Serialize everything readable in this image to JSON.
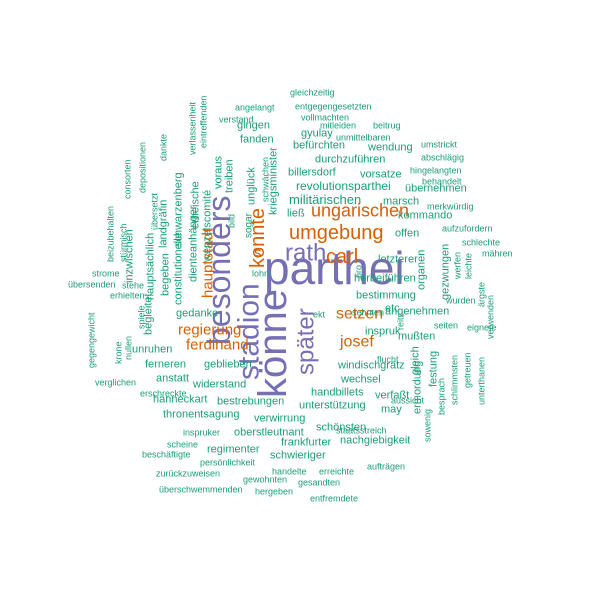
{
  "colors": {
    "large": "#7570b3",
    "medium": "#d95f02",
    "small": "#1b9e77",
    "background": "#ffffff"
  },
  "words": [
    {
      "text": "parthei",
      "color": "large"
    },
    {
      "text": "könne",
      "color": "large"
    },
    {
      "text": "besonders",
      "color": "large"
    },
    {
      "text": "stadion",
      "color": "large"
    },
    {
      "text": "rath",
      "color": "large"
    },
    {
      "text": "später",
      "color": "large"
    },
    {
      "text": "konnte",
      "color": "medium"
    },
    {
      "text": "umgebung",
      "color": "medium"
    },
    {
      "text": "ungarischen",
      "color": "medium"
    },
    {
      "text": "carl",
      "color": "medium"
    },
    {
      "text": "setzen",
      "color": "medium"
    },
    {
      "text": "josef",
      "color": "medium"
    },
    {
      "text": "regierung",
      "color": "medium"
    },
    {
      "text": "ferdinand",
      "color": "medium"
    },
    {
      "text": "hauptstadt",
      "color": "medium"
    },
    {
      "text": "s",
      "color": "medium"
    },
    {
      "text": "militärischen",
      "color": "small"
    },
    {
      "text": "revolutionsparthei",
      "color": "small"
    },
    {
      "text": "billersdorf",
      "color": "small"
    },
    {
      "text": "vorsatze",
      "color": "small"
    },
    {
      "text": "durchzuführen",
      "color": "small"
    },
    {
      "text": "gyulay",
      "color": "small"
    },
    {
      "text": "befürchten",
      "color": "small"
    },
    {
      "text": "wendung",
      "color": "small"
    },
    {
      "text": "marsch",
      "color": "small"
    },
    {
      "text": "kommando",
      "color": "small"
    },
    {
      "text": "offen",
      "color": "small"
    },
    {
      "text": "letzterer",
      "color": "small"
    },
    {
      "text": "herbeiführen",
      "color": "small"
    },
    {
      "text": "bestimmung",
      "color": "small"
    },
    {
      "text": "inspruk",
      "color": "small"
    },
    {
      "text": "etc",
      "color": "small"
    },
    {
      "text": "windischgrätz",
      "color": "small"
    },
    {
      "text": "wechsel",
      "color": "small"
    },
    {
      "text": "handbillets",
      "color": "small"
    },
    {
      "text": "verfaßt",
      "color": "small"
    },
    {
      "text": "unterstützung",
      "color": "small"
    },
    {
      "text": "may",
      "color": "small"
    },
    {
      "text": "schönsten",
      "color": "small"
    },
    {
      "text": "nachgiebigkeit",
      "color": "small"
    },
    {
      "text": "frankfurter",
      "color": "small"
    },
    {
      "text": "schwieriger",
      "color": "small"
    },
    {
      "text": "regimenter",
      "color": "small"
    },
    {
      "text": "oberstleutnant",
      "color": "small"
    },
    {
      "text": "verwirrung",
      "color": "small"
    },
    {
      "text": "thronentsagung",
      "color": "small"
    },
    {
      "text": "bestrebungen",
      "color": "small"
    },
    {
      "text": "hanneckart",
      "color": "small"
    },
    {
      "text": "widerstand",
      "color": "small"
    },
    {
      "text": "anstatt",
      "color": "small"
    },
    {
      "text": "ferneren",
      "color": "small"
    },
    {
      "text": "geblieben",
      "color": "small"
    },
    {
      "text": "unruhen",
      "color": "small"
    },
    {
      "text": "gedanke",
      "color": "small"
    },
    {
      "text": "angenehmen",
      "color": "small"
    },
    {
      "text": "mußten",
      "color": "small"
    },
    {
      "text": "übernehmen",
      "color": "small"
    },
    {
      "text": "fanden",
      "color": "small"
    },
    {
      "text": "gingen",
      "color": "small"
    },
    {
      "text": "ließ",
      "color": "small"
    },
    {
      "text": "sogar",
      "color": "small"
    },
    {
      "text": "ermordung",
      "color": "small"
    },
    {
      "text": "festung",
      "color": "small"
    },
    {
      "text": "gleich",
      "color": "small"
    },
    {
      "text": "organen",
      "color": "small"
    },
    {
      "text": "gezwungen",
      "color": "small"
    },
    {
      "text": "begleitet",
      "color": "small"
    },
    {
      "text": "begeben",
      "color": "small"
    },
    {
      "text": "hauptsächlich",
      "color": "small"
    },
    {
      "text": "inzwischen",
      "color": "small"
    },
    {
      "text": "constitutionelle",
      "color": "small"
    },
    {
      "text": "landgräfin",
      "color": "small"
    },
    {
      "text": "schwarzenberg",
      "color": "small"
    },
    {
      "text": "erheische",
      "color": "small"
    },
    {
      "text": "dienteanhänger",
      "color": "small"
    },
    {
      "text": "wenzelscomité",
      "color": "small"
    },
    {
      "text": "voraus",
      "color": "small"
    },
    {
      "text": "treiben",
      "color": "small"
    },
    {
      "text": "unglück",
      "color": "small"
    },
    {
      "text": "kriegsminister",
      "color": "small"
    },
    {
      "text": "gleichzeitig",
      "color": "small"
    },
    {
      "text": "entgegengesetzten",
      "color": "small"
    },
    {
      "text": "vollmachten",
      "color": "small"
    },
    {
      "text": "angelangt",
      "color": "small"
    },
    {
      "text": "verstand",
      "color": "small"
    },
    {
      "text": "mitleiden",
      "color": "small"
    },
    {
      "text": "beitrug",
      "color": "small"
    },
    {
      "text": "unmittelbaren",
      "color": "small"
    },
    {
      "text": "umstrickt",
      "color": "small"
    },
    {
      "text": "abschlägig",
      "color": "small"
    },
    {
      "text": "hingelangten",
      "color": "small"
    },
    {
      "text": "behandelt",
      "color": "small"
    },
    {
      "text": "merkwürdig",
      "color": "small"
    },
    {
      "text": "aufzufordern",
      "color": "small"
    },
    {
      "text": "schlechte",
      "color": "small"
    },
    {
      "text": "mähren",
      "color": "small"
    },
    {
      "text": "werfen",
      "color": "small"
    },
    {
      "text": "leichte",
      "color": "small"
    },
    {
      "text": "ärgste",
      "color": "small"
    },
    {
      "text": "verwenden",
      "color": "small"
    },
    {
      "text": "seiten",
      "color": "small"
    },
    {
      "text": "wurden",
      "color": "small"
    },
    {
      "text": "eignete",
      "color": "small"
    },
    {
      "text": "sehnten",
      "color": "small"
    },
    {
      "text": "flucht",
      "color": "small"
    },
    {
      "text": "aussicht",
      "color": "small"
    },
    {
      "text": "besprach",
      "color": "small"
    },
    {
      "text": "schlimmsten",
      "color": "small"
    },
    {
      "text": "getreuen",
      "color": "small"
    },
    {
      "text": "unterthanen",
      "color": "small"
    },
    {
      "text": "sowenig",
      "color": "small"
    },
    {
      "text": "staatsstreich",
      "color": "small"
    },
    {
      "text": "aufträgen",
      "color": "small"
    },
    {
      "text": "erreichte",
      "color": "small"
    },
    {
      "text": "gesandten",
      "color": "small"
    },
    {
      "text": "handelte",
      "color": "small"
    },
    {
      "text": "gewohnten",
      "color": "small"
    },
    {
      "text": "hergeben",
      "color": "small"
    },
    {
      "text": "entfremdete",
      "color": "small"
    },
    {
      "text": "überschwemmenden",
      "color": "small"
    },
    {
      "text": "zurückzuweisen",
      "color": "small"
    },
    {
      "text": "persönlichkeit",
      "color": "small"
    },
    {
      "text": "beschäftigte",
      "color": "small"
    },
    {
      "text": "scheine",
      "color": "small"
    },
    {
      "text": "inspruker",
      "color": "small"
    },
    {
      "text": "erschreckte",
      "color": "small"
    },
    {
      "text": "verglichen",
      "color": "small"
    },
    {
      "text": "gegengewicht",
      "color": "small"
    },
    {
      "text": "krone",
      "color": "small"
    },
    {
      "text": "nullen",
      "color": "small"
    },
    {
      "text": "übersenden",
      "color": "small"
    },
    {
      "text": "strome",
      "color": "small"
    },
    {
      "text": "stehe",
      "color": "small"
    },
    {
      "text": "erhielten",
      "color": "small"
    },
    {
      "text": "spiele",
      "color": "small"
    },
    {
      "text": "stürmisch",
      "color": "small"
    },
    {
      "text": "beizubehalten",
      "color": "small"
    },
    {
      "text": "consorten",
      "color": "small"
    },
    {
      "text": "depositionen",
      "color": "small"
    },
    {
      "text": "dankte",
      "color": "small"
    },
    {
      "text": "übersetzt",
      "color": "small"
    },
    {
      "text": "verlassenheit",
      "color": "small"
    },
    {
      "text": "eintreffenden",
      "color": "small"
    },
    {
      "text": "bild",
      "color": "small"
    },
    {
      "text": "schwächen",
      "color": "small"
    },
    {
      "text": "lohn",
      "color": "small"
    },
    {
      "text": "pro",
      "color": "small"
    },
    {
      "text": "reitz",
      "color": "small"
    },
    {
      "text": "ekt",
      "color": "small"
    }
  ]
}
